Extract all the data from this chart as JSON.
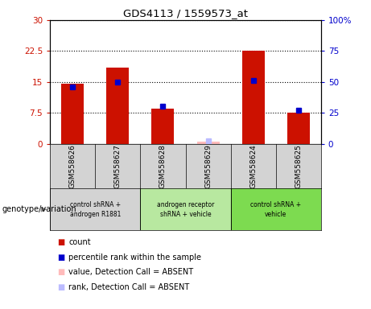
{
  "title": "GDS4113 / 1559573_at",
  "samples": [
    "GSM558626",
    "GSM558627",
    "GSM558628",
    "GSM558629",
    "GSM558624",
    "GSM558625"
  ],
  "count_values": [
    14.5,
    18.5,
    8.5,
    0.5,
    22.5,
    7.5
  ],
  "count_absent": [
    false,
    false,
    false,
    true,
    false,
    false
  ],
  "percentile_values": [
    46,
    50,
    30,
    2,
    51,
    27
  ],
  "percentile_absent": [
    false,
    false,
    false,
    true,
    false,
    false
  ],
  "ylim_left": [
    0,
    30
  ],
  "ylim_right": [
    0,
    100
  ],
  "yticks_left": [
    0,
    7.5,
    15,
    22.5,
    30
  ],
  "yticks_right": [
    0,
    25,
    50,
    75,
    100
  ],
  "ytick_labels_left": [
    "0",
    "7.5",
    "15",
    "22.5",
    "30"
  ],
  "ytick_labels_right": [
    "0",
    "25",
    "50",
    "75",
    "100%"
  ],
  "groups": [
    {
      "label": "control shRNA +\nandrogen R1881",
      "samples": [
        0,
        1
      ],
      "color": "#d3d3d3"
    },
    {
      "label": "androgen receptor\nshRNA + vehicle",
      "samples": [
        2,
        3
      ],
      "color": "#b8e8a0"
    },
    {
      "label": "control shRNA +\nvehicle",
      "samples": [
        4,
        5
      ],
      "color": "#7ddb50"
    }
  ],
  "bar_color_present": "#cc1100",
  "bar_color_absent": "#ffbbbb",
  "dot_color_present": "#0000cc",
  "dot_color_absent": "#bbbbff",
  "bar_width": 0.5,
  "sample_bg_color": "#d3d3d3",
  "legend_items": [
    {
      "label": "count",
      "color": "#cc1100"
    },
    {
      "label": "percentile rank within the sample",
      "color": "#0000cc"
    },
    {
      "label": "value, Detection Call = ABSENT",
      "color": "#ffbbbb"
    },
    {
      "label": "rank, Detection Call = ABSENT",
      "color": "#bbbbff"
    }
  ],
  "genotype_label": "genotype/variation",
  "left_ylabel_color": "#cc1100",
  "right_ylabel_color": "#0000cc"
}
